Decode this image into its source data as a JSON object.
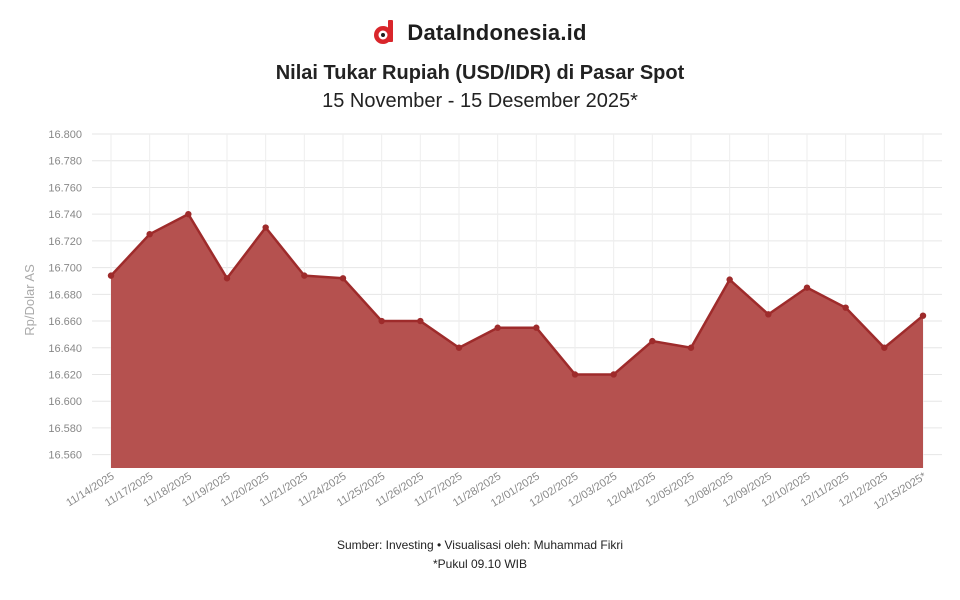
{
  "brand": {
    "name": "DataIndonesia.id",
    "logo_icon": "data-indonesia-logo-icon",
    "logo_color": "#d9262b"
  },
  "title": "Nilai Tukar Rupiah (USD/IDR) di Pasar Spot",
  "subtitle": "15 November - 15 Desember 2025*",
  "footer": {
    "source": "Sumber: Investing • Visualisasi oleh: Muhammad Fikri",
    "note": "*Pukul 09.10 WIB"
  },
  "chart_data": {
    "type": "area",
    "ylabel": "Rp/Dolar AS",
    "ylim": [
      16550,
      16800
    ],
    "yticks": [
      16560,
      16580,
      16600,
      16620,
      16640,
      16660,
      16680,
      16700,
      16720,
      16740,
      16760,
      16780,
      16800
    ],
    "ytick_labels": [
      "16.560",
      "16.580",
      "16.600",
      "16.620",
      "16.640",
      "16.660",
      "16.680",
      "16.700",
      "16.720",
      "16.740",
      "16.760",
      "16.780",
      "16.800"
    ],
    "grid": true,
    "line_color": "#9e2b2b",
    "fill_color": "#b5514f",
    "categories": [
      "11/14/2025",
      "11/17/2025",
      "11/18/2025",
      "11/19/2025",
      "11/20/2025",
      "11/21/2025",
      "11/24/2025",
      "11/25/2025",
      "11/26/2025",
      "11/27/2025",
      "11/28/2025",
      "12/01/2025",
      "12/02/2025",
      "12/03/2025",
      "12/04/2025",
      "12/05/2025",
      "12/08/2025",
      "12/09/2025",
      "12/10/2025",
      "12/11/2025",
      "12/12/2025",
      "12/15/2025*"
    ],
    "values": [
      16694,
      16725,
      16740,
      16692,
      16730,
      16694,
      16692,
      16660,
      16660,
      16640,
      16655,
      16655,
      16620,
      16620,
      16645,
      16640,
      16691,
      16665,
      16685,
      16670,
      16640,
      16664
    ]
  }
}
